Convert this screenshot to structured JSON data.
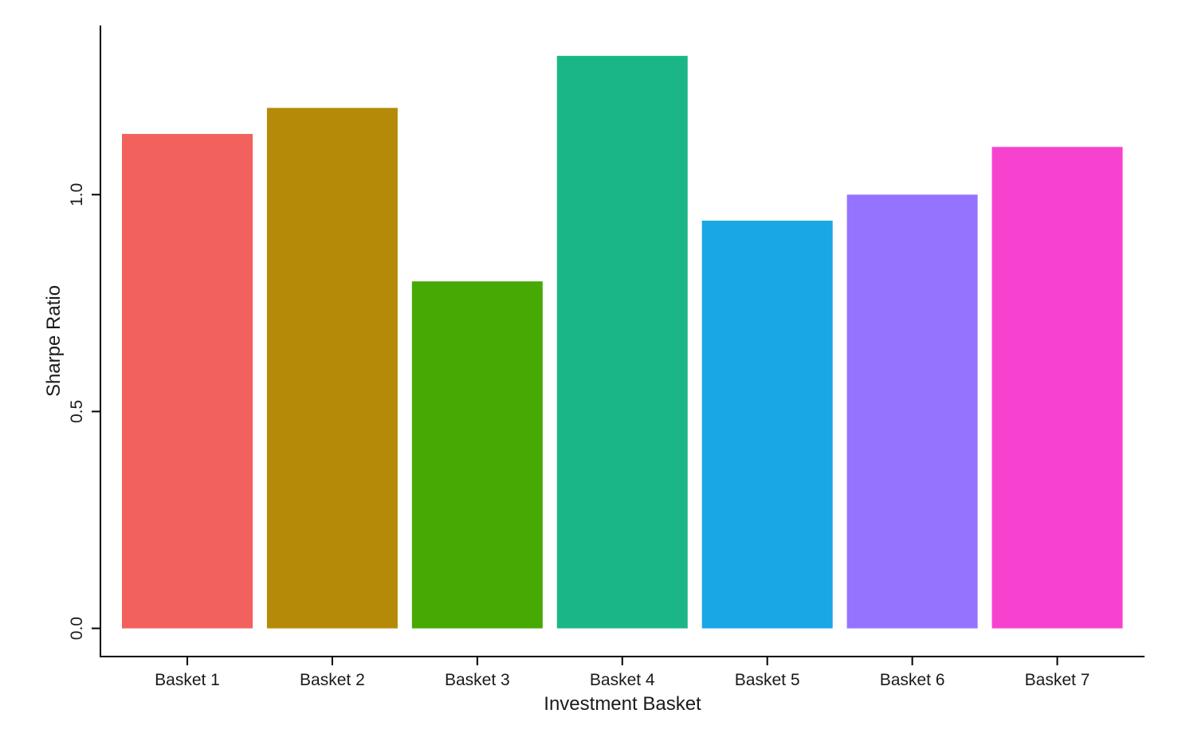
{
  "chart_data": {
    "type": "bar",
    "title": "",
    "xlabel": "Investment Basket",
    "ylabel": "Sharpe Ratio",
    "categories": [
      "Basket 1",
      "Basket 2",
      "Basket 3",
      "Basket 4",
      "Basket 5",
      "Basket 6",
      "Basket 7"
    ],
    "values": [
      1.14,
      1.2,
      0.8,
      1.32,
      0.94,
      1.0,
      1.11
    ],
    "colors": [
      "#F2615E",
      "#B58A08",
      "#46A904",
      "#1BB687",
      "#19A7E5",
      "#9673FE",
      "#F742D0"
    ],
    "yticks": [
      0.0,
      0.5,
      1.0
    ],
    "ytick_labels": [
      "0.0",
      "0.5",
      "1.0"
    ],
    "ylim": [
      -0.065,
      1.39
    ],
    "grid": false,
    "legend": "none"
  }
}
